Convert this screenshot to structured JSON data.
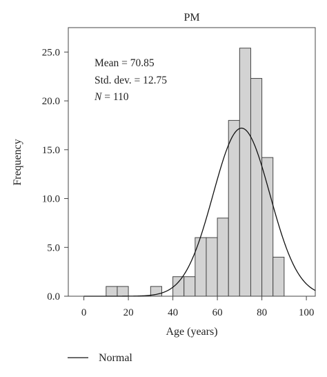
{
  "chart_data": {
    "type": "histogram",
    "title": "PM",
    "xlabel": "Age (years)",
    "ylabel": "Frequency",
    "xlim": [
      -7,
      104
    ],
    "ylim": [
      0,
      27.5
    ],
    "x_ticks": [
      0,
      20,
      40,
      60,
      80,
      100
    ],
    "x_tick_labels": [
      "0",
      "20",
      "40",
      "60",
      "80",
      "100"
    ],
    "y_ticks": [
      0,
      5,
      10,
      15,
      20,
      25
    ],
    "y_tick_labels": [
      "0.0",
      "5.0",
      "10.0",
      "15.0",
      "20.0",
      "25.0"
    ],
    "bin_width": 5,
    "bins": [
      {
        "x0": 10,
        "x1": 15,
        "count": 1
      },
      {
        "x0": 15,
        "x1": 20,
        "count": 1
      },
      {
        "x0": 30,
        "x1": 35,
        "count": 1
      },
      {
        "x0": 40,
        "x1": 45,
        "count": 2
      },
      {
        "x0": 45,
        "x1": 50,
        "count": 2
      },
      {
        "x0": 50,
        "x1": 55,
        "count": 6
      },
      {
        "x0": 55,
        "x1": 60,
        "count": 6
      },
      {
        "x0": 60,
        "x1": 65,
        "count": 8
      },
      {
        "x0": 65,
        "x1": 70,
        "count": 18
      },
      {
        "x0": 70,
        "x1": 75,
        "count": 25.4
      },
      {
        "x0": 75,
        "x1": 80,
        "count": 22.3
      },
      {
        "x0": 80,
        "x1": 85,
        "count": 14.2
      },
      {
        "x0": 85,
        "x1": 90,
        "count": 4
      }
    ],
    "normal_curve": {
      "mean": 70.85,
      "sd": 12.75,
      "n": 110,
      "bin_width": 5
    },
    "stats_text": {
      "mean": "Mean = 70.85",
      "sd": "Std. dev. = 12.75",
      "n_symbol": "N",
      "n_rest": " = 110"
    },
    "legend": [
      {
        "name": "Normal",
        "style": "line"
      }
    ],
    "grid": false,
    "colors": {
      "bar_fill": "#d3d3d3",
      "bar_stroke": "#444444",
      "curve": "#111111",
      "axis": "#444444"
    }
  }
}
